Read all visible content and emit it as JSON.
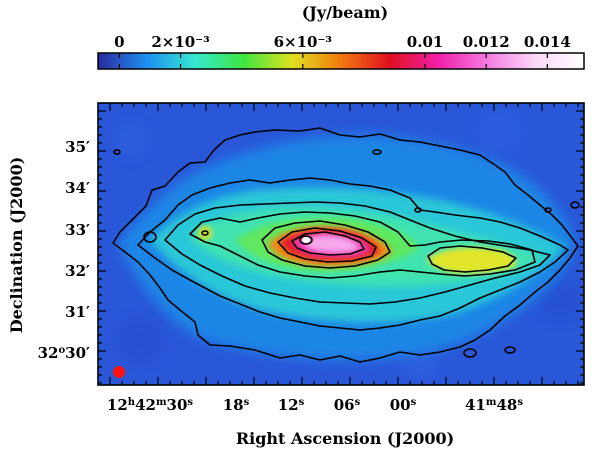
{
  "colorbar": {
    "unit_label": "(Jy/beam)",
    "ticks": [
      {
        "value": 0,
        "label": "0"
      },
      {
        "value": 0.002,
        "label": "2×10⁻³"
      },
      {
        "value": 0.006,
        "label": "6×10⁻³"
      },
      {
        "value": 0.01,
        "label": "0.01"
      },
      {
        "value": 0.012,
        "label": "0.012"
      },
      {
        "value": 0.014,
        "label": "0.014"
      }
    ],
    "range": [
      -0.0007,
      0.0152
    ],
    "colors": [
      "#2a2a9e",
      "#1e8ff0",
      "#35e8d0",
      "#3fe63f",
      "#e0e020",
      "#f07a10",
      "#e01020",
      "#f020a8",
      "#f47ae0",
      "#fbd8f8",
      "#ffffff"
    ]
  },
  "axes": {
    "xlabel": "Right Ascension (J2000)",
    "ylabel": "Declination (J2000)",
    "x_ticks": [
      {
        "main": "12",
        "sup1": "h",
        "mid": "42",
        "sup2": "m",
        "tail": "30",
        "sup3": "s"
      },
      {
        "main": "18",
        "sup1": "s"
      },
      {
        "main": "12",
        "sup1": "s"
      },
      {
        "main": "06",
        "sup1": "s"
      },
      {
        "main": "00",
        "sup1": "s"
      },
      {
        "main": "41",
        "sup1": "m",
        "mid": "48",
        "sup2": "s"
      }
    ],
    "y_ticks": [
      {
        "label": "35′"
      },
      {
        "label": "34′"
      },
      {
        "label": "33′"
      },
      {
        "label": "32′"
      },
      {
        "label": "31′"
      },
      {
        "main": "32",
        "sup": "o",
        "tail": "30′"
      }
    ]
  },
  "map": {
    "background_color": "#2a56d8",
    "beam_color": "#ff1010",
    "contour_color": "#000000"
  }
}
